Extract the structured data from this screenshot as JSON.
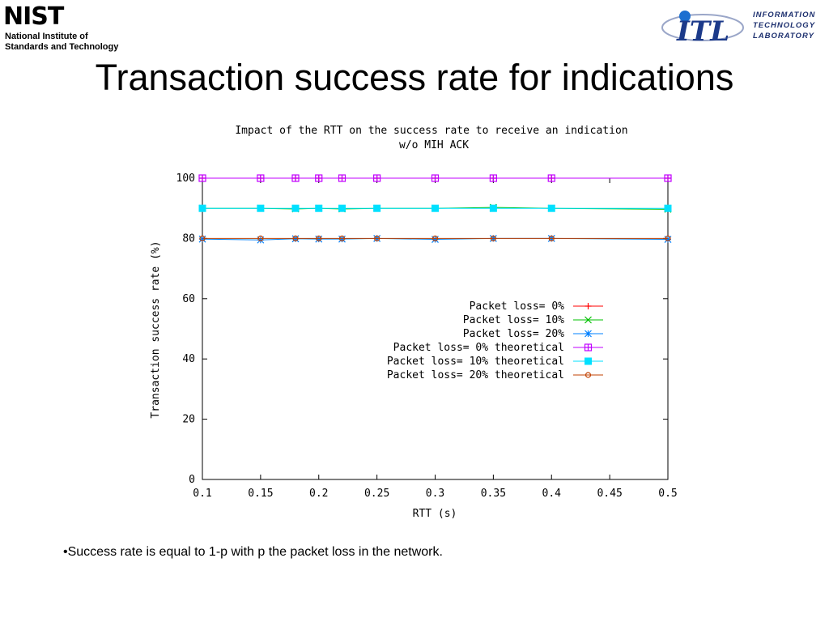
{
  "header": {
    "nist_logo": {
      "word": "NIST",
      "line1": "National Institute of",
      "line2": "Standards and Technology"
    },
    "itl_logo": {
      "mark": "ITL",
      "lines": [
        "INFORMATION",
        "TECHNOLOGY",
        "LABORATORY"
      ]
    },
    "title": "Transaction success rate for indications"
  },
  "chart_data": {
    "type": "line",
    "title": "Impact of the RTT on the success rate to receive an indication",
    "subtitle": "w/o MIH ACK",
    "xlabel": "RTT (s)",
    "ylabel": "Transaction success rate (%)",
    "xlim": [
      0.1,
      0.5
    ],
    "ylim": [
      0,
      100
    ],
    "xticks": [
      "0.1",
      "0.15",
      "0.2",
      "0.25",
      "0.3",
      "0.35",
      "0.4",
      "0.45",
      "0.5"
    ],
    "yticks": [
      "0",
      "20",
      "40",
      "60",
      "80",
      "100"
    ],
    "legend_position": "center-right",
    "grid": false,
    "series": [
      {
        "name": "Packet loss= 0%",
        "color": "#ff0000",
        "marker": "plus",
        "x": [
          0.1,
          0.15,
          0.18,
          0.2,
          0.22,
          0.25,
          0.3,
          0.35,
          0.4,
          0.5
        ],
        "y": [
          100,
          100,
          100,
          100,
          100,
          100,
          100,
          100,
          100,
          100
        ]
      },
      {
        "name": "Packet loss= 10%",
        "color": "#00c000",
        "marker": "cross",
        "x": [
          0.1,
          0.15,
          0.18,
          0.2,
          0.22,
          0.25,
          0.3,
          0.35,
          0.4,
          0.5
        ],
        "y": [
          90,
          90,
          89.8,
          90,
          89.8,
          90,
          90,
          90.3,
          90,
          89.7
        ]
      },
      {
        "name": "Packet loss= 20%",
        "color": "#0080ff",
        "marker": "star",
        "x": [
          0.1,
          0.15,
          0.18,
          0.2,
          0.22,
          0.25,
          0.3,
          0.35,
          0.4,
          0.5
        ],
        "y": [
          79.8,
          79.5,
          79.9,
          79.8,
          79.8,
          80,
          79.7,
          80,
          80,
          79.7
        ]
      },
      {
        "name": "Packet loss= 0% theoretical",
        "color": "#c000ff",
        "marker": "square-open",
        "x": [
          0.1,
          0.15,
          0.18,
          0.2,
          0.22,
          0.25,
          0.3,
          0.35,
          0.4,
          0.5
        ],
        "y": [
          100,
          100,
          100,
          100,
          100,
          100,
          100,
          100,
          100,
          100
        ]
      },
      {
        "name": "Packet loss= 10% theoretical",
        "color": "#00e0ff",
        "marker": "square-filled",
        "x": [
          0.1,
          0.15,
          0.18,
          0.2,
          0.22,
          0.25,
          0.3,
          0.35,
          0.4,
          0.5
        ],
        "y": [
          90,
          90,
          90,
          90,
          90,
          90,
          90,
          90,
          90,
          90
        ]
      },
      {
        "name": "Packet loss= 20% theoretical",
        "color": "#c04000",
        "marker": "circle",
        "x": [
          0.1,
          0.15,
          0.18,
          0.2,
          0.22,
          0.25,
          0.3,
          0.35,
          0.4,
          0.5
        ],
        "y": [
          80,
          80,
          80,
          80,
          80,
          80,
          80,
          80,
          80,
          80
        ]
      }
    ]
  },
  "notes": {
    "bullet": "•Success rate is equal to 1-p with p the packet loss in the network."
  }
}
